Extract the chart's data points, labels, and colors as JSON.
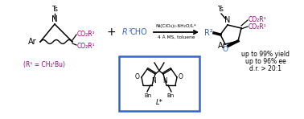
{
  "bg_color": "#ffffff",
  "purple_color": "#990077",
  "blue_color": "#3366cc",
  "box_color": "#3366cc",
  "black": "#000000",
  "condition_line1": "Ni(ClO₄)₂·6H₂O/L*",
  "condition_line2": "4 Å MS, toluene",
  "r1_def": "(R¹ = CH₂ᵗBu)",
  "lstar": "L*",
  "yield1": "up to 99% yield",
  "yield2": "up to 96% ee",
  "yield3": "d.r. > 20:1"
}
